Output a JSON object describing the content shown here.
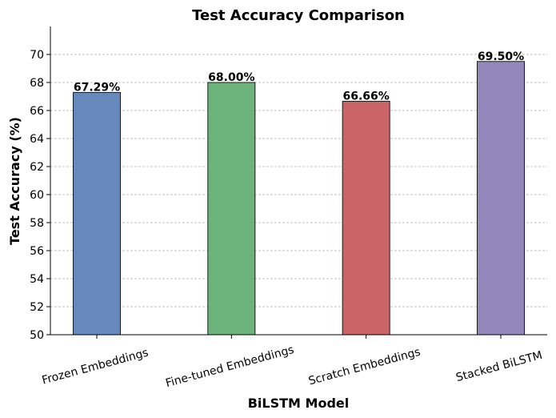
{
  "chart_data": {
    "type": "bar",
    "title": "Test Accuracy Comparison",
    "xlabel": "BiLSTM Model",
    "ylabel": "Test Accuracy (%)",
    "categories": [
      "Frozen Embeddings",
      "Fine-tuned Embeddings",
      "Scratch Embeddings",
      "Stacked BiLSTM"
    ],
    "values": [
      67.29,
      68.0,
      66.66,
      69.5
    ],
    "value_labels": [
      "67.29%",
      "68.00%",
      "66.66%",
      "69.50%"
    ],
    "colors": [
      "#6788bd",
      "#6db47c",
      "#cb6467",
      "#9387bc"
    ],
    "ylim": [
      50,
      72
    ],
    "yticks": [
      50,
      52,
      54,
      56,
      58,
      60,
      62,
      64,
      66,
      68,
      70
    ],
    "ytick_labels": [
      "50",
      "52",
      "54",
      "56",
      "58",
      "60",
      "62",
      "64",
      "66",
      "68",
      "70"
    ],
    "grid": "horizontal dashed",
    "legend": "none"
  }
}
